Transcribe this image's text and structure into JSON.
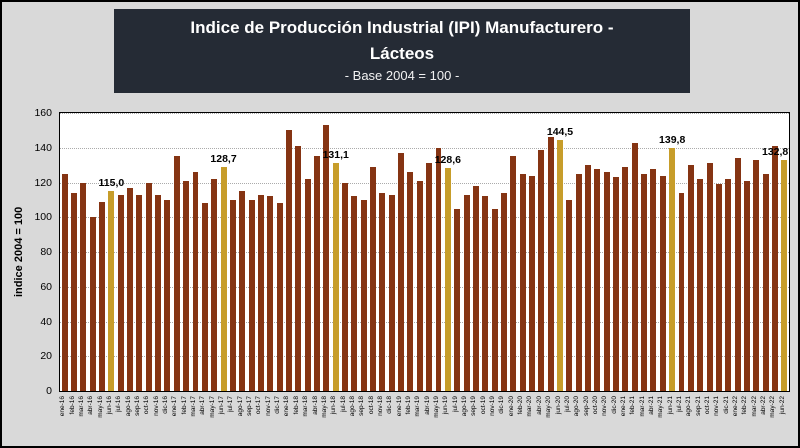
{
  "title": {
    "line1": "Indice de Producción Industrial (IPI) Manufacturero -",
    "line2": "Lácteos",
    "subtitle": "- Base 2004 = 100 -"
  },
  "chart_data": {
    "type": "bar",
    "title": "Indice de Producción Industrial (IPI) Manufacturero - Lácteos",
    "subtitle": "- Base 2004 = 100 -",
    "xlabel": "",
    "ylabel": "indice 2004 = 100",
    "ylim": [
      0,
      160
    ],
    "ytick_step": 20,
    "grid": "dotted horizontal",
    "legend": "none",
    "bar_color": "#853413",
    "highlight_color": "#c79d2a",
    "categories": [
      "ene-16",
      "feb-16",
      "mar-16",
      "abr-16",
      "may-16",
      "jun-16",
      "jul-16",
      "ago-16",
      "sep-16",
      "oct-16",
      "nov-16",
      "dic-16",
      "ene-17",
      "feb-17",
      "mar-17",
      "abr-17",
      "may-17",
      "jun-17",
      "jul-17",
      "ago-17",
      "sep-17",
      "oct-17",
      "nov-17",
      "dic-17",
      "ene-18",
      "feb-18",
      "mar-18",
      "abr-18",
      "may-18",
      "jun-18",
      "jul-18",
      "ago-18",
      "sep-18",
      "oct-18",
      "nov-18",
      "dic-18",
      "ene-19",
      "feb-19",
      "mar-19",
      "abr-19",
      "may-19",
      "jun-19",
      "jul-19",
      "ago-19",
      "sep-19",
      "oct-19",
      "nov-19",
      "dic-19",
      "ene-20",
      "feb-20",
      "mar-20",
      "abr-20",
      "may-20",
      "jun-20",
      "jul-20",
      "ago-20",
      "sep-20",
      "oct-20",
      "nov-20",
      "dic-20",
      "ene-21",
      "feb-21",
      "mar-21",
      "abr-21",
      "may-21",
      "jun-21",
      "jul-21",
      "ago-21",
      "sep-21",
      "oct-21",
      "nov-21",
      "dic-21",
      "ene-22",
      "feb-22",
      "mar-22",
      "abr-22",
      "may-22",
      "jun-22"
    ],
    "values": [
      125,
      114,
      120,
      100,
      109,
      115.0,
      113,
      117,
      113,
      120,
      113,
      110,
      135,
      121,
      126,
      108,
      122,
      128.7,
      110,
      115,
      110,
      113,
      112,
      108,
      150,
      141,
      122,
      135,
      153,
      131.1,
      120,
      112,
      110,
      129,
      114,
      113,
      137,
      126,
      121,
      131,
      140,
      128.6,
      105,
      113,
      118,
      112,
      105,
      114,
      135,
      125,
      124,
      139,
      146,
      144.5,
      110,
      125,
      130,
      128,
      126,
      123,
      129,
      143,
      125,
      128,
      124,
      139.8,
      114,
      130,
      122,
      131,
      119,
      122,
      134,
      121,
      133,
      125,
      141,
      132.8
    ],
    "highlight_indices": [
      5,
      17,
      29,
      41,
      53,
      65,
      77
    ],
    "annotations": [
      {
        "index": 5,
        "label": "115,0"
      },
      {
        "index": 17,
        "label": "128,7"
      },
      {
        "index": 29,
        "label": "131,1"
      },
      {
        "index": 41,
        "label": "128,6"
      },
      {
        "index": 53,
        "label": "144,5"
      },
      {
        "index": 65,
        "label": "139,8"
      },
      {
        "index": 77,
        "label": "132,8"
      }
    ]
  }
}
